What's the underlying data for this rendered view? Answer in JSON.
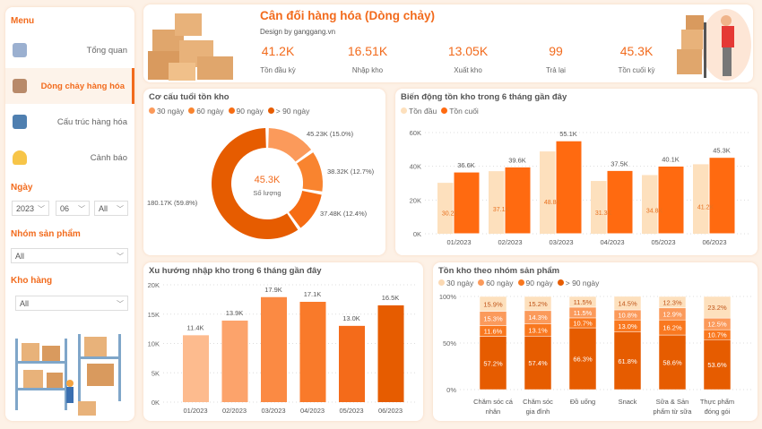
{
  "sidebar": {
    "menu_title": "Menu",
    "items": [
      {
        "label": "Tổng quan",
        "icon": "dashboard-icon"
      },
      {
        "label": "Dòng chảy hàng hóa",
        "icon": "boxes-icon",
        "active": true
      },
      {
        "label": "Cấu trúc hàng hóa",
        "icon": "structure-icon"
      },
      {
        "label": "Cảnh báo",
        "icon": "bell-icon"
      }
    ],
    "date_label": "Ngày",
    "year": "2023",
    "month": "06",
    "day": "All",
    "group_label": "Nhóm sản phẩm",
    "group_value": "All",
    "warehouse_label": "Kho hàng",
    "warehouse_value": "All"
  },
  "header": {
    "title": "Cân đối hàng hóa (Dòng chảy)",
    "subtitle": "Design by ganggang.vn",
    "kpis": [
      {
        "value": "41.2K",
        "label": "Tồn đầu kỳ"
      },
      {
        "value": "16.51K",
        "label": "Nhập kho"
      },
      {
        "value": "13.05K",
        "label": "Xuất kho"
      },
      {
        "value": "99",
        "label": "Trả lại"
      },
      {
        "value": "45.3K",
        "label": "Tồn cuối kỳ"
      }
    ]
  },
  "colors": {
    "accent": "#f26b1d",
    "c30": "#fbd9b3",
    "c60": "#fb9a5b",
    "c90": "#f9781f",
    "c90p": "#e65c00",
    "light": "#fde0bd"
  },
  "chart_data": [
    {
      "type": "pie",
      "title": "Cơ cấu tuổi tồn kho",
      "legend": [
        "30 ngày",
        "60 ngày",
        "90 ngày",
        "> 90 ngày"
      ],
      "center_value": "45.3K",
      "center_label": "Số lượng",
      "values": [
        45.23,
        38.32,
        37.48,
        180.17
      ],
      "labels": [
        "45.23K (15.0%)",
        "38.32K (12.7%)",
        "37.48K (12.4%)",
        "180.17K (59.8%)"
      ]
    },
    {
      "type": "bar",
      "title": "Biến động tồn kho trong 6 tháng gần đây",
      "legend": [
        "Tồn đầu",
        "Tồn cuối"
      ],
      "categories": [
        "01/2023",
        "02/2023",
        "03/2023",
        "04/2023",
        "05/2023",
        "06/2023"
      ],
      "series": [
        {
          "name": "Tồn đầu",
          "values": [
            30.2,
            37.1,
            48.8,
            31.3,
            34.8,
            41.2
          ],
          "labels": [
            "30.2K",
            "37.1K",
            "48.8K",
            "31.3K",
            "34.8K",
            "41.2K"
          ]
        },
        {
          "name": "Tồn cuối",
          "values": [
            36.6,
            39.6,
            55.1,
            37.5,
            40.1,
            45.3
          ],
          "labels": [
            "36.6K",
            "39.6K",
            "55.1K",
            "37.5K",
            "40.1K",
            "45.3K"
          ]
        }
      ],
      "yticks": [
        "0K",
        "20K",
        "40K",
        "60K"
      ],
      "ylim": [
        0,
        60
      ]
    },
    {
      "type": "bar",
      "title": "Xu hướng nhập kho trong 6 tháng gần đây",
      "categories": [
        "01/2023",
        "02/2023",
        "03/2023",
        "04/2023",
        "05/2023",
        "06/2023"
      ],
      "values": [
        11.4,
        13.9,
        17.9,
        17.1,
        13.0,
        16.5
      ],
      "labels": [
        "11.4K",
        "13.9K",
        "17.9K",
        "17.1K",
        "13.0K",
        "16.5K"
      ],
      "yticks": [
        "0K",
        "5K",
        "10K",
        "15K",
        "20K"
      ],
      "ylim": [
        0,
        20
      ]
    },
    {
      "type": "bar",
      "stacked": true,
      "title": "Tồn kho theo nhóm sản phẩm",
      "legend": [
        "30 ngày",
        "60 ngày",
        "90 ngày",
        "> 90 ngày"
      ],
      "categories": [
        [
          "Chăm sóc cá",
          "nhân"
        ],
        [
          "Chăm sóc",
          "gia đình"
        ],
        [
          "Đồ uống",
          ""
        ],
        [
          "Snack",
          ""
        ],
        [
          "Sữa & Sản",
          "phẩm từ sữa"
        ],
        [
          "Thực phẩm",
          "đóng gói"
        ]
      ],
      "series": [
        {
          "name": "> 90 ngày",
          "values": [
            57.2,
            57.4,
            66.3,
            61.8,
            58.6,
            53.6
          ]
        },
        {
          "name": "90 ngày",
          "values": [
            11.6,
            13.1,
            10.7,
            13.0,
            16.2,
            10.7
          ]
        },
        {
          "name": "60 ngày",
          "values": [
            15.3,
            14.3,
            11.5,
            10.8,
            12.9,
            12.5
          ]
        },
        {
          "name": "30 ngày",
          "values": [
            15.9,
            15.2,
            11.5,
            14.5,
            12.3,
            23.2
          ]
        }
      ],
      "yticks": [
        "0%",
        "50%",
        "100%"
      ],
      "ylim": [
        0,
        100
      ]
    }
  ]
}
